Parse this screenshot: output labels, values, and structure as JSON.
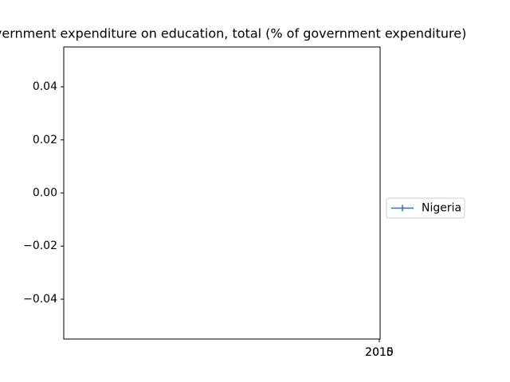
{
  "chart_data": {
    "type": "line",
    "title": "Government expenditure on education, total (% of government expenditure)",
    "categories": [
      "2010",
      "2015"
    ],
    "series": [
      {
        "name": "Nigeria",
        "color": "#1f77b4",
        "values": [
          null,
          null
        ]
      }
    ],
    "ylim": [
      -0.055,
      0.055
    ],
    "yticks": [
      {
        "value": -0.04,
        "label": "−0.04"
      },
      {
        "value": -0.02,
        "label": "−0.02"
      },
      {
        "value": 0,
        "label": "0.00"
      },
      0.02,
      0.04
    ],
    "legend": "right"
  }
}
